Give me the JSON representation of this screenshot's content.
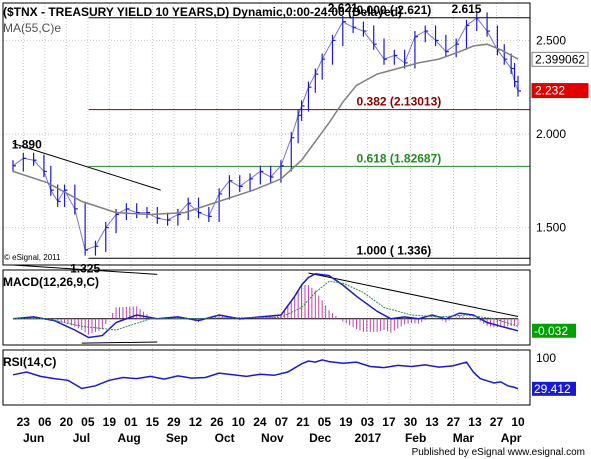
{
  "header": {
    "title": "($TNX - TREASURY YIELD 10 YEARS,D) Dynamic,0:00-24:00 (Delayed)",
    "ma_label": "MA(55,C)e",
    "copyright": "© eSignal, 2011",
    "published": "Published by eSignal  www.esignal.com"
  },
  "colors": {
    "price": "#1a1acd",
    "ma": "#808080",
    "fib_0": "#000000",
    "fib_382": "#8b0000",
    "fib_618": "#228b22",
    "fib_100": "#000000",
    "trendline": "#000000",
    "macd": "#1a1acd",
    "macd_signal": "#2e8b57",
    "macd_hist": "#c03fb0",
    "rsi": "#1a1acd",
    "label_red": "#e00000",
    "label_green": "#00a000"
  },
  "chart_data": [
    {
      "type": "line",
      "panel": "price",
      "ylim": [
        1.3,
        2.7
      ],
      "yticks": [
        1.5,
        2.0,
        2.5
      ],
      "ytick_labels": [
        "1.500",
        "2.000",
        "2.500"
      ],
      "x_labels": [
        "23",
        "06",
        "20",
        "05",
        "19",
        "01",
        "15",
        "29",
        "12",
        "26",
        "10",
        "24",
        "07",
        "21",
        "05",
        "19",
        "03",
        "17",
        "30",
        "13",
        "27",
        "13",
        "27",
        "10"
      ],
      "month_labels": [
        "Jun",
        "Jul",
        "Aug",
        "Sep",
        "Oct",
        "Nov",
        "Dec",
        "2017",
        "Feb",
        "Mar",
        "Apr"
      ],
      "series": [
        {
          "kind": "price",
          "x": [
            0,
            3,
            6,
            9,
            11,
            13,
            15,
            18,
            21,
            24,
            27,
            30,
            33,
            36,
            39,
            42,
            45,
            48,
            51,
            54,
            57,
            60,
            63,
            66,
            69,
            72,
            75,
            78,
            81,
            83,
            84,
            86,
            88,
            90,
            93,
            96,
            99,
            102,
            105,
            108,
            111,
            114,
            117,
            120,
            123,
            126,
            129,
            132,
            135,
            138,
            141,
            143,
            145,
            146,
            147
          ],
          "values": [
            1.83,
            1.87,
            1.86,
            1.8,
            1.7,
            1.64,
            1.7,
            1.6,
            1.38,
            1.4,
            1.5,
            1.57,
            1.6,
            1.58,
            1.58,
            1.55,
            1.54,
            1.57,
            1.63,
            1.58,
            1.56,
            1.68,
            1.75,
            1.72,
            1.76,
            1.8,
            1.77,
            1.83,
            1.98,
            2.1,
            2.15,
            2.25,
            2.32,
            2.4,
            2.5,
            2.6,
            2.57,
            2.55,
            2.48,
            2.4,
            2.42,
            2.38,
            2.52,
            2.55,
            2.5,
            2.44,
            2.48,
            2.58,
            2.62,
            2.55,
            2.45,
            2.4,
            2.35,
            2.28,
            2.23
          ]
        },
        {
          "kind": "ma",
          "name": "MA(55,C)e",
          "x": [
            0,
            10,
            20,
            30,
            40,
            50,
            60,
            70,
            78,
            84,
            88,
            92,
            96,
            100,
            106,
            112,
            118,
            124,
            130,
            134,
            138,
            142,
            147
          ],
          "values": [
            1.8,
            1.74,
            1.64,
            1.58,
            1.57,
            1.58,
            1.64,
            1.7,
            1.76,
            1.86,
            1.96,
            2.06,
            2.17,
            2.26,
            2.32,
            2.35,
            2.38,
            2.4,
            2.44,
            2.47,
            2.48,
            2.45,
            2.4
          ]
        }
      ],
      "fib_levels": [
        {
          "value": 2.621,
          "label": "0.000 ( 2.621)"
        },
        {
          "value": 2.13013,
          "label": "0.382 (2.13013)"
        },
        {
          "value": 1.82687,
          "label": "0.618 (1.82687)"
        },
        {
          "value": 1.336,
          "label": "1.000 ( 1.336)"
        }
      ],
      "annotations": [
        {
          "label": "1.890",
          "x": 4,
          "value": 1.89
        },
        {
          "label": "1.325",
          "x": 21,
          "value": 1.325
        },
        {
          "label": "2.621",
          "x": 96,
          "value": 2.621
        },
        {
          "label": "2.615",
          "x": 132,
          "value": 2.615
        }
      ],
      "trendlines": [
        {
          "x1": 0,
          "y1": 1.95,
          "x2": 43,
          "y2": 1.7
        },
        {
          "x1": 0,
          "y1": 1.3,
          "x2": 42,
          "y2": 1.25
        }
      ],
      "last_values": [
        {
          "label": "2.399062",
          "value": 2.399,
          "series": "ma"
        },
        {
          "label": "2.232",
          "value": 2.232,
          "series": "price"
        }
      ]
    },
    {
      "type": "line",
      "panel": "macd",
      "title": "MACD(12,26,9,C)",
      "ylim": [
        -0.07,
        0.13
      ],
      "last_value_label": "-0.032",
      "series": [
        {
          "kind": "macd",
          "x": [
            0,
            6,
            12,
            18,
            22,
            26,
            30,
            36,
            42,
            48,
            54,
            60,
            66,
            72,
            78,
            82,
            84,
            86,
            88,
            92,
            96,
            100,
            106,
            110,
            114,
            118,
            122,
            126,
            130,
            134,
            138,
            142,
            147
          ],
          "values": [
            0.0,
            0.005,
            -0.005,
            -0.03,
            -0.05,
            -0.045,
            -0.01,
            0.01,
            0.0,
            0.005,
            -0.005,
            0.01,
            0.0,
            0.005,
            0.01,
            0.06,
            0.09,
            0.11,
            0.12,
            0.115,
            0.09,
            0.06,
            0.02,
            0.0,
            0.005,
            0.0,
            0.01,
            0.0,
            0.015,
            0.01,
            -0.01,
            -0.02,
            -0.032
          ]
        },
        {
          "kind": "signal",
          "x": [
            0,
            10,
            20,
            30,
            40,
            50,
            60,
            70,
            78,
            84,
            88,
            92,
            96,
            102,
            108,
            116,
            124,
            132,
            140,
            147
          ],
          "values": [
            0.0,
            0.0,
            -0.02,
            -0.03,
            0.0,
            0.0,
            0.002,
            0.003,
            0.004,
            0.03,
            0.07,
            0.1,
            0.095,
            0.07,
            0.03,
            0.01,
            0.005,
            0.01,
            0.0,
            -0.02
          ]
        }
      ],
      "trendlines": [
        {
          "x1": 86,
          "y1": 0.122,
          "x2": 147,
          "y2": 0.006
        },
        {
          "x1": 20,
          "y1": -0.065,
          "x2": 42,
          "y2": -0.062
        },
        {
          "x1": 0,
          "y1": 0.0,
          "x2": 147,
          "y2": 0.0
        }
      ]
    },
    {
      "type": "line",
      "panel": "rsi",
      "title": "RSI(14,C)",
      "ylim": [
        0,
        100
      ],
      "yticks": [
        100
      ],
      "ytick_labels": [
        "100"
      ],
      "last_value_label": "29.412",
      "x": [
        0,
        4,
        8,
        12,
        16,
        20,
        24,
        28,
        32,
        36,
        40,
        44,
        48,
        52,
        56,
        60,
        64,
        68,
        72,
        76,
        80,
        84,
        86,
        88,
        90,
        92,
        96,
        100,
        104,
        108,
        112,
        116,
        120,
        124,
        128,
        132,
        134,
        136,
        138,
        140,
        142,
        144,
        146,
        147
      ],
      "values": [
        55,
        60,
        52,
        48,
        45,
        30,
        35,
        45,
        50,
        48,
        52,
        47,
        53,
        49,
        50,
        58,
        55,
        52,
        56,
        54,
        60,
        75,
        80,
        78,
        82,
        79,
        76,
        78,
        70,
        68,
        72,
        70,
        73,
        69,
        71,
        78,
        60,
        48,
        44,
        40,
        42,
        35,
        32,
        29.412
      ]
    }
  ]
}
